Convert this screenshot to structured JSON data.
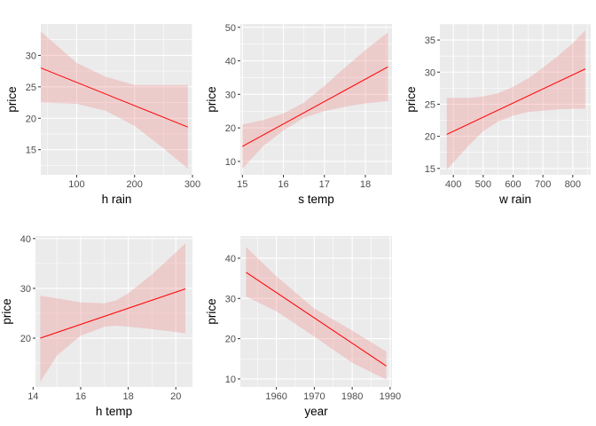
{
  "chart_data": [
    {
      "type": "line",
      "xlabel": "h rain",
      "ylabel": "price",
      "xlim": [
        38,
        300
      ],
      "ylim": [
        11,
        35
      ],
      "x_ticks": [
        100,
        200,
        300
      ],
      "y_ticks": [
        15,
        20,
        25,
        30
      ],
      "x_tick_labels": [
        "100",
        "200",
        "300"
      ],
      "y_tick_labels": [
        "15",
        "20",
        "25",
        "30"
      ],
      "fit": {
        "x": [
          38,
          292
        ],
        "y": [
          28.0,
          18.6
        ]
      },
      "band": {
        "x": [
          38,
          100,
          150,
          200,
          250,
          292
        ],
        "lower": [
          22.5,
          22.3,
          21.2,
          18.8,
          15.2,
          12.0
        ],
        "upper": [
          33.8,
          28.8,
          26.6,
          25.3,
          25.3,
          25.3
        ]
      },
      "grid": true,
      "colors": {
        "line": "#ff0000",
        "band": "#f08080",
        "panel": "#ebebeb"
      }
    },
    {
      "type": "line",
      "xlabel": "s temp",
      "ylabel": "price",
      "xlim": [
        14.95,
        18.65
      ],
      "ylim": [
        6,
        51
      ],
      "x_ticks": [
        15,
        16,
        17,
        18
      ],
      "y_ticks": [
        10,
        20,
        30,
        40,
        50
      ],
      "x_tick_labels": [
        "15",
        "16",
        "17",
        "18"
      ],
      "y_tick_labels": [
        "10",
        "20",
        "30",
        "40",
        "50"
      ],
      "fit": {
        "x": [
          15.0,
          18.55
        ],
        "y": [
          14.5,
          38.2
        ]
      },
      "band": {
        "x": [
          15.0,
          15.5,
          16.0,
          16.5,
          17.0,
          17.5,
          18.0,
          18.55
        ],
        "lower": [
          7.8,
          14.5,
          19.2,
          23.0,
          25.0,
          26.3,
          27.3,
          28.0
        ],
        "upper": [
          21.0,
          22.3,
          24.3,
          27.5,
          32.5,
          38.0,
          43.2,
          48.5
        ]
      },
      "grid": true,
      "colors": {
        "line": "#ff0000",
        "band": "#f08080",
        "panel": "#ebebeb"
      }
    },
    {
      "type": "line",
      "xlabel": "w rain",
      "ylabel": "price",
      "xlim": [
        355,
        860
      ],
      "ylim": [
        14,
        37.5
      ],
      "x_ticks": [
        400,
        500,
        600,
        700,
        800
      ],
      "y_ticks": [
        15,
        20,
        25,
        30,
        35
      ],
      "x_tick_labels": [
        "400",
        "500",
        "600",
        "700",
        "800"
      ],
      "y_tick_labels": [
        "15",
        "20",
        "25",
        "30",
        "35"
      ],
      "fit": {
        "x": [
          378,
          842
        ],
        "y": [
          20.3,
          30.5
        ]
      },
      "band": {
        "x": [
          378,
          450,
          500,
          550,
          600,
          650,
          700,
          750,
          800,
          842
        ],
        "lower": [
          14.8,
          18.5,
          20.8,
          22.3,
          23.2,
          23.8,
          24.0,
          24.2,
          24.3,
          24.3
        ],
        "upper": [
          26.0,
          26.0,
          26.2,
          26.7,
          27.7,
          29.0,
          30.7,
          32.5,
          34.5,
          36.5
        ]
      },
      "grid": true,
      "colors": {
        "line": "#ff0000",
        "band": "#f08080",
        "panel": "#ebebeb"
      }
    },
    {
      "type": "line",
      "xlabel": "h temp",
      "ylabel": "price",
      "xlim": [
        14.1,
        20.7
      ],
      "ylim": [
        10.2,
        40.5
      ],
      "x_ticks": [
        14,
        16,
        18,
        20
      ],
      "y_ticks": [
        20,
        30,
        40
      ],
      "x_tick_labels": [
        "14",
        "16",
        "18",
        "20"
      ],
      "y_tick_labels": [
        "20",
        "30",
        "40"
      ],
      "fit": {
        "x": [
          14.3,
          20.4
        ],
        "y": [
          20.0,
          29.9
        ]
      },
      "band": {
        "x": [
          14.3,
          15.0,
          16.0,
          17.0,
          17.5,
          18.0,
          19.0,
          20.4
        ],
        "lower": [
          11.2,
          16.5,
          20.5,
          22.3,
          22.5,
          22.3,
          21.8,
          21.0
        ],
        "upper": [
          28.5,
          28.0,
          27.2,
          27.0,
          27.6,
          29.0,
          32.8,
          39.0
        ]
      },
      "grid": true,
      "colors": {
        "line": "#ff0000",
        "band": "#f08080",
        "panel": "#ebebeb"
      }
    },
    {
      "type": "line",
      "xlabel": "year",
      "ylabel": "price",
      "xlim": [
        1950.5,
        1990.5
      ],
      "ylim": [
        8,
        45.5
      ],
      "x_ticks": [
        1960,
        1970,
        1980,
        1990
      ],
      "y_ticks": [
        10,
        20,
        30,
        40
      ],
      "x_tick_labels": [
        "1960",
        "1970",
        "1980",
        "1990"
      ],
      "y_tick_labels": [
        "10",
        "20",
        "30",
        "40"
      ],
      "fit": {
        "x": [
          1952,
          1989
        ],
        "y": [
          36.5,
          13.2
        ]
      },
      "band": {
        "x": [
          1952,
          1960,
          1970,
          1980,
          1989
        ],
        "lower": [
          30.5,
          26.8,
          20.5,
          14.0,
          9.8
        ],
        "upper": [
          42.8,
          35.5,
          27.5,
          22.0,
          16.8
        ]
      },
      "grid": true,
      "colors": {
        "line": "#ff0000",
        "band": "#f08080",
        "panel": "#ebebeb"
      }
    }
  ]
}
